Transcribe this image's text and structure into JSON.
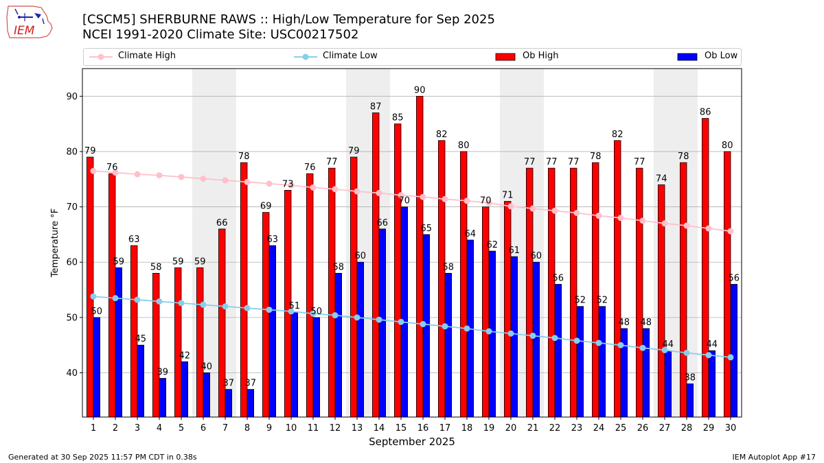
{
  "header": {
    "title_line1": "[CSCM5] SHERBURNE RAWS :: High/Low Temperature for Sep 2025",
    "title_line2": "NCEI 1991-2020 Climate Site: USC00217502",
    "logo_text": "IEM"
  },
  "footer": {
    "generated": "Generated at 30 Sep 2025 11:57 PM CDT in 0.38s",
    "app": "IEM Autoplot App #17"
  },
  "colors": {
    "ob_high": "#ff0000",
    "ob_low": "#0000ff",
    "climate_high": "#ffc0cb",
    "climate_low": "#87ceeb",
    "weekend_shade": "#eeeeee",
    "grid": "#b0b0b0"
  },
  "chart_data": {
    "type": "bar",
    "xlabel": "September 2025",
    "ylabel": "Temperature °F",
    "xlim": [
      0.5,
      30.5
    ],
    "ylim": [
      32,
      95
    ],
    "yticks": [
      40,
      50,
      60,
      70,
      80,
      90
    ],
    "grid": true,
    "legend_position": "top",
    "shaded_weekends": [
      [
        6,
        7
      ],
      [
        13,
        14
      ],
      [
        20,
        21
      ],
      [
        27,
        28
      ]
    ],
    "categories": [
      "1",
      "2",
      "3",
      "4",
      "5",
      "6",
      "7",
      "8",
      "9",
      "10",
      "11",
      "12",
      "13",
      "14",
      "15",
      "16",
      "17",
      "18",
      "19",
      "20",
      "21",
      "22",
      "23",
      "24",
      "25",
      "26",
      "27",
      "28",
      "29",
      "30"
    ],
    "series": [
      {
        "name": "Climate High",
        "kind": "line",
        "values": [
          76.5,
          76.2,
          75.9,
          75.7,
          75.4,
          75.1,
          74.8,
          74.5,
          74.2,
          73.9,
          73.5,
          73.2,
          72.8,
          72.5,
          72.1,
          71.8,
          71.4,
          71.1,
          70.7,
          70.1,
          69.7,
          69.3,
          68.9,
          68.4,
          68.0,
          67.5,
          67.0,
          66.6,
          66.1,
          65.6
        ]
      },
      {
        "name": "Climate Low",
        "kind": "line",
        "values": [
          53.8,
          53.5,
          53.2,
          52.9,
          52.6,
          52.3,
          52.0,
          51.7,
          51.4,
          51.1,
          50.7,
          50.4,
          50.0,
          49.6,
          49.2,
          48.8,
          48.4,
          48.0,
          47.5,
          47.1,
          46.7,
          46.3,
          45.8,
          45.4,
          45.0,
          44.5,
          44.1,
          43.6,
          43.2,
          42.8
        ]
      },
      {
        "name": "Ob High",
        "kind": "bar",
        "values": [
          79,
          76,
          63,
          58,
          59,
          59,
          66,
          78,
          69,
          73,
          76,
          77,
          79,
          87,
          85,
          90,
          82,
          80,
          70,
          71,
          77,
          77,
          77,
          78,
          82,
          77,
          74,
          78,
          86,
          80
        ]
      },
      {
        "name": "Ob Low",
        "kind": "bar",
        "values": [
          50,
          59,
          45,
          39,
          42,
          40,
          37,
          37,
          63,
          51,
          50,
          58,
          60,
          66,
          70,
          65,
          58,
          64,
          62,
          61,
          60,
          56,
          52,
          52,
          48,
          48,
          44,
          38,
          44,
          56
        ]
      }
    ]
  }
}
